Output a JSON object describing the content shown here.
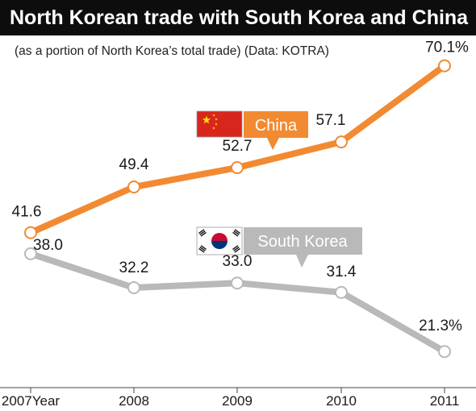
{
  "title": "North Korean trade with South Korea and China",
  "subtitle": "(as a portion of North Korea’s total trade)  (Data: KOTRA)",
  "colors": {
    "china": "#F28A32",
    "south_korea": "#B9B9B9",
    "title_bg": "#0d0d0d"
  },
  "chart_data": {
    "type": "line",
    "title": "North Korean trade with South Korea and China",
    "subtitle": "(as a portion of North Korea’s total trade)  (Data: KOTRA)",
    "categories": [
      "2007",
      "2008",
      "2009",
      "2010",
      "2011"
    ],
    "x_tick_labels": [
      "2007Year",
      "2008",
      "2009",
      "2010",
      "2011"
    ],
    "ylim": [
      15,
      75
    ],
    "grid": false,
    "series": [
      {
        "name": "China",
        "values": [
          41.6,
          49.4,
          52.7,
          57.1,
          70.1
        ],
        "labels": [
          "41.6",
          "49.4",
          "52.7",
          "57.1",
          "70.1%"
        ],
        "color": "#F28A32",
        "icon": "china-flag-icon"
      },
      {
        "name": "South Korea",
        "values": [
          38.0,
          32.2,
          33.0,
          31.4,
          21.3
        ],
        "labels": [
          "38.0",
          "32.2",
          "33.0",
          "31.4",
          "21.3%"
        ],
        "color": "#B9B9B9",
        "icon": "south-korea-flag-icon"
      }
    ]
  }
}
